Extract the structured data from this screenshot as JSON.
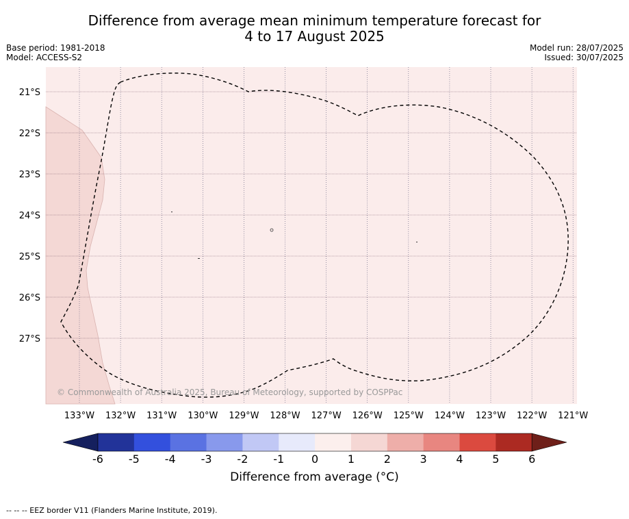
{
  "title_line1": "Difference from average mean minimum temperature forecast for",
  "title_line2": "4 to 17 August 2025",
  "meta_left": {
    "base_period": "Base period: 1981-2018",
    "model": "Model: ACCESS-S2"
  },
  "meta_right": {
    "model_run": "Model run: 28/07/2025",
    "issued": "Issued: 30/07/2025"
  },
  "map": {
    "lat_labels": [
      "21°S",
      "22°S",
      "23°S",
      "24°S",
      "25°S",
      "26°S",
      "27°S"
    ],
    "lon_labels": [
      "133°W",
      "132°W",
      "131°W",
      "130°W",
      "129°W",
      "128°W",
      "127°W",
      "126°W",
      "125°W",
      "124°W",
      "123°W",
      "122°W",
      "121°W"
    ],
    "background_category": "0 to 1",
    "background_color": "#fbeceb",
    "west_patch_category": "1 to 2",
    "west_patch_color": "#f4d8d5",
    "copyright": "© Commonwealth of Australia 2025, Bureau of Meteorology, supported by COSPPac"
  },
  "colorbar": {
    "ticks": [
      "-6",
      "-5",
      "-4",
      "-3",
      "-2",
      "-1",
      "0",
      "1",
      "2",
      "3",
      "4",
      "5",
      "6"
    ],
    "colors": [
      "#223399",
      "#3350dd",
      "#5a72e2",
      "#8899ec",
      "#c1c8f5",
      "#e7eafb",
      "#fcefed",
      "#f5d7d4",
      "#eeaea9",
      "#e88680",
      "#db4a3f",
      "#ac2a22"
    ],
    "under_color": "#15205e",
    "over_color": "#6e1f19",
    "label": "Difference from average (°C)"
  },
  "footnote": "-- -- -- EEZ border V11 (Flanders Marine Institute, 2019)."
}
